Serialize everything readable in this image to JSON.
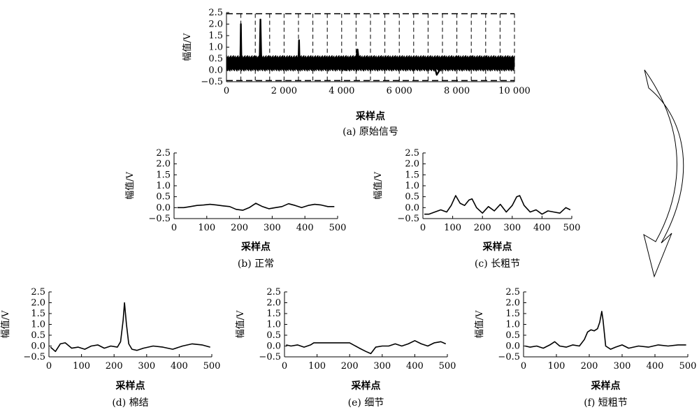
{
  "chart_data": [
    {
      "id": "a",
      "type": "line",
      "caption": "(a) 原始信号",
      "xlabel": "采样点",
      "ylabel": "幅值/V",
      "xlim": [
        0,
        10000
      ],
      "ylim": [
        -0.5,
        2.5
      ],
      "xticks": [
        0,
        2000,
        4000,
        6000,
        8000,
        10000
      ],
      "xtick_labels": [
        "0",
        "2 000",
        "4 000",
        "6 000",
        "8 000",
        "10 000"
      ],
      "yticks": [
        -0.5,
        0.0,
        0.5,
        1.0,
        1.5,
        2.0,
        2.5
      ],
      "ytick_labels": [
        "−0.5",
        "0.0",
        "0.5",
        "1.0",
        "1.5",
        "2.0",
        "2.5"
      ],
      "segment_boundaries": [
        0,
        500,
        1000,
        1500,
        2000,
        2500,
        3000,
        3500,
        4000,
        4500,
        5000,
        5500,
        6000,
        6500,
        7000,
        7500,
        8000,
        8500,
        9000,
        9500,
        10000
      ],
      "segment_box_ylim": [
        -0.45,
        2.45
      ],
      "series": [
        {
          "x": [
            0,
            300,
            480,
            500,
            520,
            700,
            1150,
            1180,
            1210,
            1400,
            2000,
            2500,
            2520,
            2540,
            2560,
            3000,
            4000,
            4150,
            4200,
            4250,
            4500,
            4550,
            4600,
            5000,
            5200,
            6000,
            7000,
            7200,
            7300,
            7400,
            7500,
            7600,
            8000,
            9000,
            10000
          ],
          "y": [
            0.3,
            0.35,
            0.3,
            2.0,
            0.3,
            0.35,
            0.3,
            2.2,
            0.3,
            0.3,
            0.3,
            0.3,
            1.3,
            0.3,
            0.3,
            0.35,
            0.3,
            0.0,
            0.3,
            0.3,
            0.5,
            0.9,
            0.4,
            0.3,
            0.3,
            0.3,
            0.3,
            0.3,
            -0.2,
            0.0,
            0.3,
            0.3,
            0.3,
            0.3,
            0.3
          ],
          "band_low": -0.05,
          "band_high": 0.65
        }
      ]
    },
    {
      "id": "b",
      "type": "line",
      "caption": "(b) 正常",
      "xlabel": "采样点",
      "ylabel": "幅值/V",
      "xlim": [
        0,
        500
      ],
      "ylim": [
        -0.5,
        2.5
      ],
      "xticks": [
        0,
        100,
        200,
        300,
        400,
        500
      ],
      "xtick_labels": [
        "0",
        "100",
        "200",
        "300",
        "400",
        "500"
      ],
      "yticks": [
        -0.5,
        0.0,
        0.5,
        1.0,
        1.5,
        2.0,
        2.5
      ],
      "ytick_labels": [
        "−0.5",
        "0.0",
        "0.5",
        "1.0",
        "1.5",
        "2.0",
        "2.5"
      ],
      "series": [
        {
          "x": [
            10,
            30,
            50,
            70,
            90,
            110,
            130,
            150,
            170,
            190,
            210,
            230,
            250,
            270,
            290,
            310,
            330,
            350,
            370,
            390,
            410,
            430,
            450,
            470,
            490
          ],
          "y": [
            0.0,
            0.0,
            0.05,
            0.1,
            0.12,
            0.15,
            0.12,
            0.08,
            0.05,
            -0.08,
            -0.12,
            0.0,
            0.2,
            0.05,
            -0.05,
            0.0,
            0.05,
            0.18,
            0.1,
            0.0,
            0.1,
            0.15,
            0.12,
            0.05,
            0.05
          ]
        }
      ]
    },
    {
      "id": "c",
      "type": "line",
      "caption": "(c) 长粗节",
      "xlabel": "采样点",
      "ylabel": "幅值/V",
      "xlim": [
        0,
        500
      ],
      "ylim": [
        -0.5,
        2.5
      ],
      "xticks": [
        0,
        100,
        200,
        300,
        400,
        500
      ],
      "xtick_labels": [
        "0",
        "100",
        "200",
        "300",
        "400",
        "500"
      ],
      "yticks": [
        -0.5,
        0.0,
        0.5,
        1.0,
        1.5,
        2.0,
        2.5
      ],
      "ytick_labels": [
        "−0.5",
        "0.0",
        "0.5",
        "1.0",
        "1.5",
        "2.0",
        "2.5"
      ],
      "series": [
        {
          "x": [
            5,
            20,
            40,
            60,
            80,
            95,
            110,
            125,
            140,
            155,
            165,
            180,
            200,
            220,
            240,
            260,
            280,
            300,
            315,
            325,
            340,
            360,
            380,
            400,
            420,
            440,
            460,
            480,
            495
          ],
          "y": [
            -0.3,
            -0.3,
            -0.2,
            -0.1,
            -0.2,
            0.1,
            0.55,
            0.2,
            0.1,
            0.35,
            0.4,
            0.0,
            -0.25,
            0.05,
            -0.15,
            0.15,
            -0.2,
            0.1,
            0.5,
            0.55,
            0.1,
            -0.2,
            -0.1,
            -0.3,
            -0.15,
            -0.2,
            -0.25,
            0.0,
            -0.1
          ]
        }
      ]
    },
    {
      "id": "d",
      "type": "line",
      "caption": "(d) 棉结",
      "xlabel": "采样点",
      "ylabel": "幅值/V",
      "xlim": [
        0,
        500
      ],
      "ylim": [
        -0.5,
        2.5
      ],
      "xticks": [
        0,
        100,
        200,
        300,
        400,
        500
      ],
      "xtick_labels": [
        "0",
        "100",
        "200",
        "300",
        "400",
        "500"
      ],
      "yticks": [
        -0.5,
        0.0,
        0.5,
        1.0,
        1.5,
        2.0,
        2.5
      ],
      "ytick_labels": [
        "−0.5",
        "0.0",
        "0.5",
        "1.0",
        "1.5",
        "2.0",
        "2.5"
      ],
      "series": [
        {
          "x": [
            5,
            20,
            35,
            50,
            70,
            90,
            110,
            130,
            150,
            170,
            190,
            210,
            220,
            228,
            232,
            238,
            245,
            255,
            270,
            290,
            320,
            350,
            380,
            410,
            440,
            470,
            495
          ],
          "y": [
            -0.05,
            -0.25,
            0.1,
            0.15,
            -0.1,
            -0.05,
            -0.15,
            0.0,
            0.05,
            -0.1,
            0.0,
            -0.05,
            0.2,
            1.2,
            2.0,
            1.0,
            0.1,
            -0.15,
            -0.2,
            -0.1,
            0.0,
            -0.05,
            -0.15,
            0.0,
            0.1,
            0.05,
            -0.05
          ]
        }
      ]
    },
    {
      "id": "e",
      "type": "line",
      "caption": "(e) 细节",
      "xlabel": "采样点",
      "ylabel": "幅值/V",
      "xlim": [
        0,
        500
      ],
      "ylim": [
        -0.5,
        2.5
      ],
      "xticks": [
        0,
        100,
        200,
        300,
        400,
        500
      ],
      "xtick_labels": [
        "0",
        "100",
        "200",
        "300",
        "400",
        "500"
      ],
      "yticks": [
        -0.5,
        0.0,
        0.5,
        1.0,
        1.5,
        2.0,
        2.5
      ],
      "ytick_labels": [
        "−0.5",
        "0.0",
        "0.5",
        "1.0",
        "1.5",
        "2.0",
        "2.5"
      ],
      "series": [
        {
          "x": [
            5,
            20,
            40,
            60,
            80,
            90,
            100,
            200,
            230,
            250,
            265,
            280,
            300,
            320,
            340,
            360,
            380,
            400,
            420,
            440,
            460,
            480,
            495
          ],
          "y": [
            0.05,
            0.0,
            0.05,
            -0.05,
            0.05,
            0.15,
            0.15,
            0.15,
            -0.1,
            -0.25,
            -0.35,
            -0.05,
            0.0,
            0.0,
            0.1,
            0.0,
            0.1,
            0.25,
            0.1,
            0.0,
            0.15,
            0.2,
            0.1
          ]
        }
      ]
    },
    {
      "id": "f",
      "type": "line",
      "caption": "(f)  短粗节",
      "xlabel": "采样点",
      "ylabel": "幅值/V",
      "xlim": [
        0,
        500
      ],
      "ylim": [
        -0.5,
        2.5
      ],
      "xticks": [
        0,
        100,
        200,
        300,
        400,
        500
      ],
      "xtick_labels": [
        "0",
        "100",
        "200",
        "300",
        "400",
        "500"
      ],
      "yticks": [
        -0.5,
        0.0,
        0.5,
        1.0,
        1.5,
        2.0,
        2.5
      ],
      "ytick_labels": [
        "−0.5",
        "0.0",
        "0.5",
        "1.0",
        "1.5",
        "2.0",
        "2.5"
      ],
      "series": [
        {
          "x": [
            5,
            20,
            40,
            60,
            80,
            95,
            110,
            130,
            150,
            170,
            185,
            195,
            205,
            215,
            225,
            232,
            238,
            242,
            250,
            265,
            280,
            300,
            320,
            350,
            380,
            410,
            440,
            470,
            495
          ],
          "y": [
            0.0,
            -0.05,
            0.0,
            -0.1,
            0.05,
            0.2,
            0.0,
            -0.05,
            0.05,
            0.0,
            0.3,
            0.65,
            0.75,
            0.7,
            0.8,
            1.1,
            1.6,
            1.2,
            0.0,
            -0.15,
            -0.05,
            0.05,
            -0.1,
            0.0,
            -0.05,
            0.05,
            0.0,
            0.05,
            0.05
          ]
        }
      ]
    }
  ]
}
